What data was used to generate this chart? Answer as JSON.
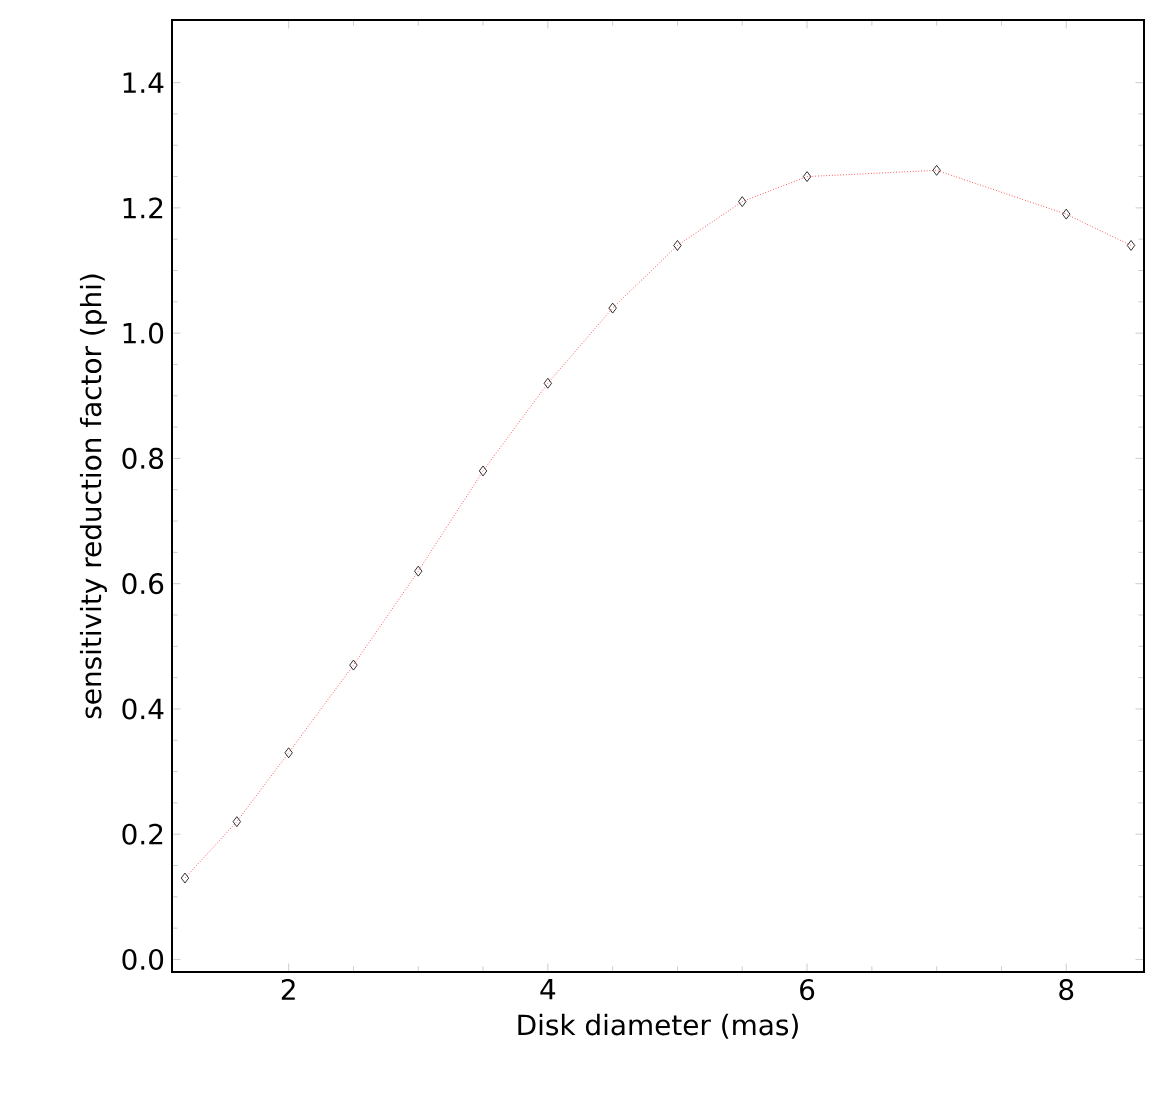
{
  "chart_data": {
    "type": "line",
    "xlabel": "Disk diameter (mas)",
    "ylabel": "sensitivity reduction factor (phi)",
    "series": [
      {
        "color": "#ff0000",
        "x": [
          1.2,
          1.6,
          2,
          2.5,
          3,
          3.5,
          4,
          4.5,
          5,
          5.5,
          6,
          7,
          8,
          8.5
        ],
        "values": [
          0.13,
          0.22,
          0.33,
          0.47,
          0.62,
          0.78,
          0.92,
          1.04,
          1.14,
          1.21,
          1.25,
          1.26,
          1.19,
          1.14
        ]
      }
    ],
    "xlim": [
      1.1,
      8.6
    ],
    "ylim": [
      -0.02,
      1.5
    ],
    "xticks": [
      2,
      4,
      6,
      8
    ],
    "yticks": [
      {
        "value": 0,
        "label": "0.0"
      },
      {
        "value": 0.2,
        "label": "0.2"
      },
      {
        "value": 0.4,
        "label": "0.4"
      },
      {
        "value": 0.6,
        "label": "0.6"
      },
      {
        "value": 0.8,
        "label": "0.8"
      },
      {
        "value": 1.0,
        "label": "1.0"
      },
      {
        "value": 1.2,
        "label": "1.2"
      },
      {
        "value": 1.4,
        "label": "1.4"
      }
    ],
    "marker": "diamond",
    "line_style": "dotted"
  }
}
